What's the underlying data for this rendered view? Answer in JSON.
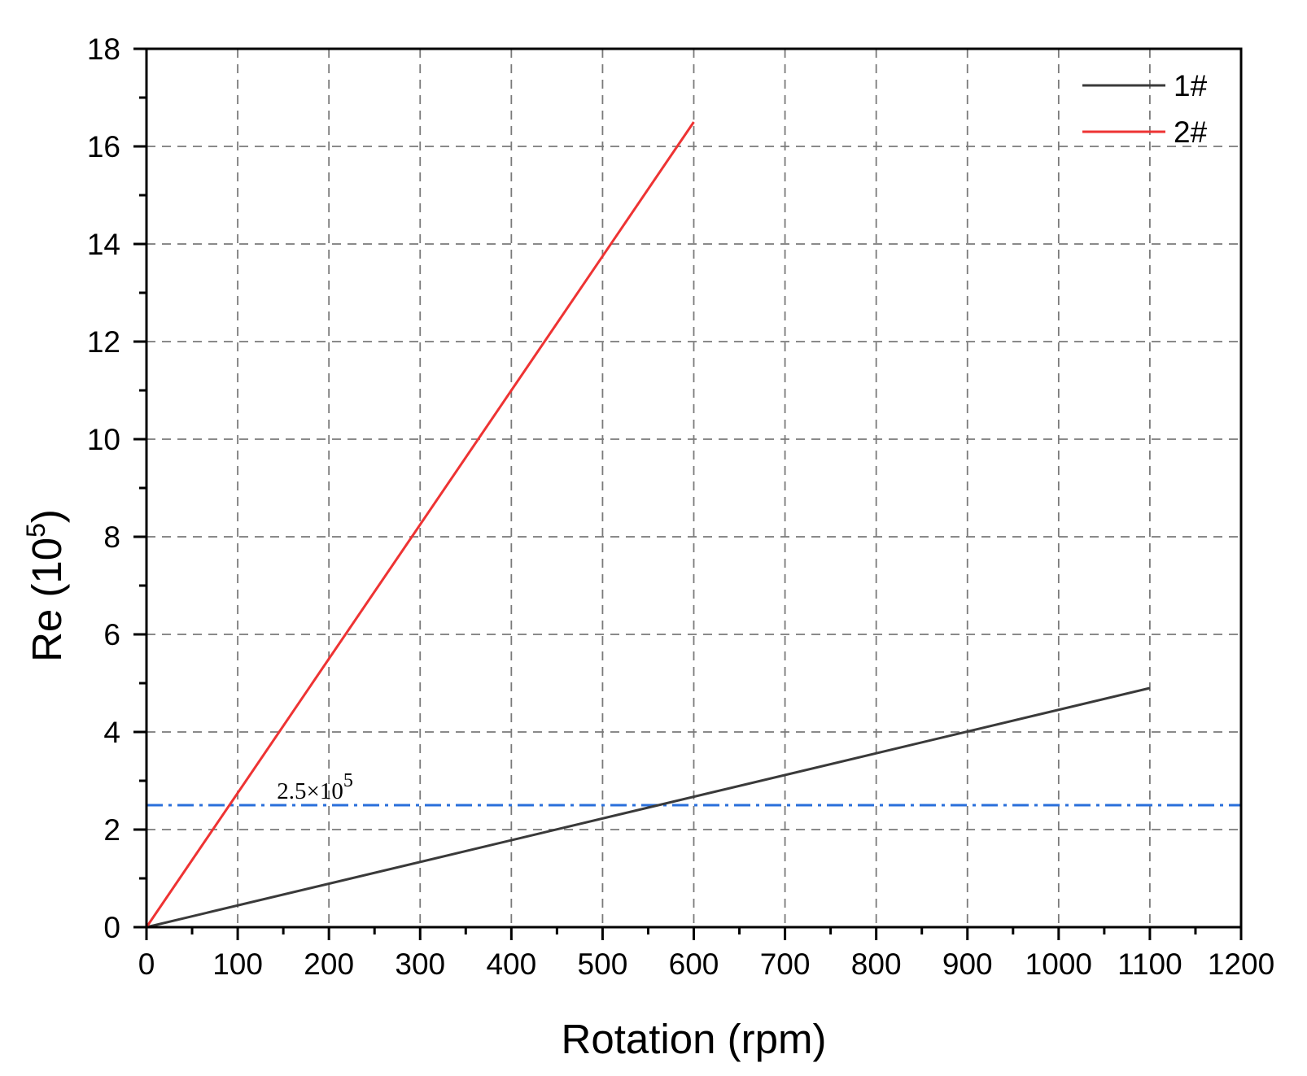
{
  "chart_data": {
    "type": "line",
    "xlabel": "Rotation (rpm)",
    "ylabel": {
      "base": "Re (10",
      "sup": "5",
      "close": ")"
    },
    "xlim": [
      0,
      1200
    ],
    "ylim": [
      0,
      18
    ],
    "x_ticks": [
      "0",
      "100",
      "200",
      "300",
      "400",
      "500",
      "600",
      "700",
      "800",
      "900",
      "1000",
      "1100",
      "1200"
    ],
    "y_ticks": [
      "0",
      "2",
      "4",
      "6",
      "8",
      "10",
      "12",
      "14",
      "16",
      "18"
    ],
    "grid": true,
    "grid_style": "dashed",
    "legend_position": "top-right",
    "series": [
      {
        "name": "1#",
        "color": "#3a3a3a",
        "x": [
          0,
          1100
        ],
        "y": [
          0,
          4.9
        ]
      },
      {
        "name": "2#",
        "color": "#ee3333",
        "x": [
          0,
          600
        ],
        "y": [
          0,
          16.5
        ]
      }
    ],
    "reference_lines": [
      {
        "y": 2.5,
        "color": "#2a6fdb",
        "style": "dash-dot",
        "label": {
          "base": "2.5×10",
          "sup": "5"
        }
      }
    ]
  }
}
